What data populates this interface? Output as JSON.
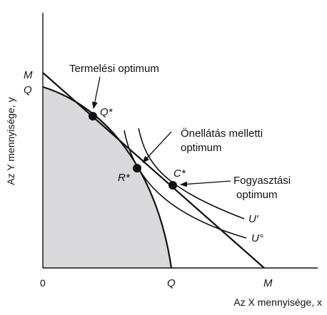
{
  "axes": {
    "y_label": "Az Y mennyisége, y",
    "x_label": "Az X mennyisége, x",
    "origin": "0",
    "x_tick_Q": "Q",
    "x_tick_M": "M",
    "y_tick_M": "M",
    "y_tick_Q": "Q"
  },
  "points": {
    "Q_star": "Q*",
    "R_star": "R*",
    "C_star": "C*"
  },
  "curves": {
    "U_prime": "U′",
    "U_zero": "U°"
  },
  "annotations": {
    "production_optimum": "Termelési optimum",
    "autarky_line1": "Önellátás melletti",
    "autarky_line2": "optimum",
    "consumption_line1": "Fogyasztási",
    "consumption_line2": "optimum"
  },
  "colors": {
    "feasible_area": "#d9d9dc",
    "ink": "#111111"
  }
}
